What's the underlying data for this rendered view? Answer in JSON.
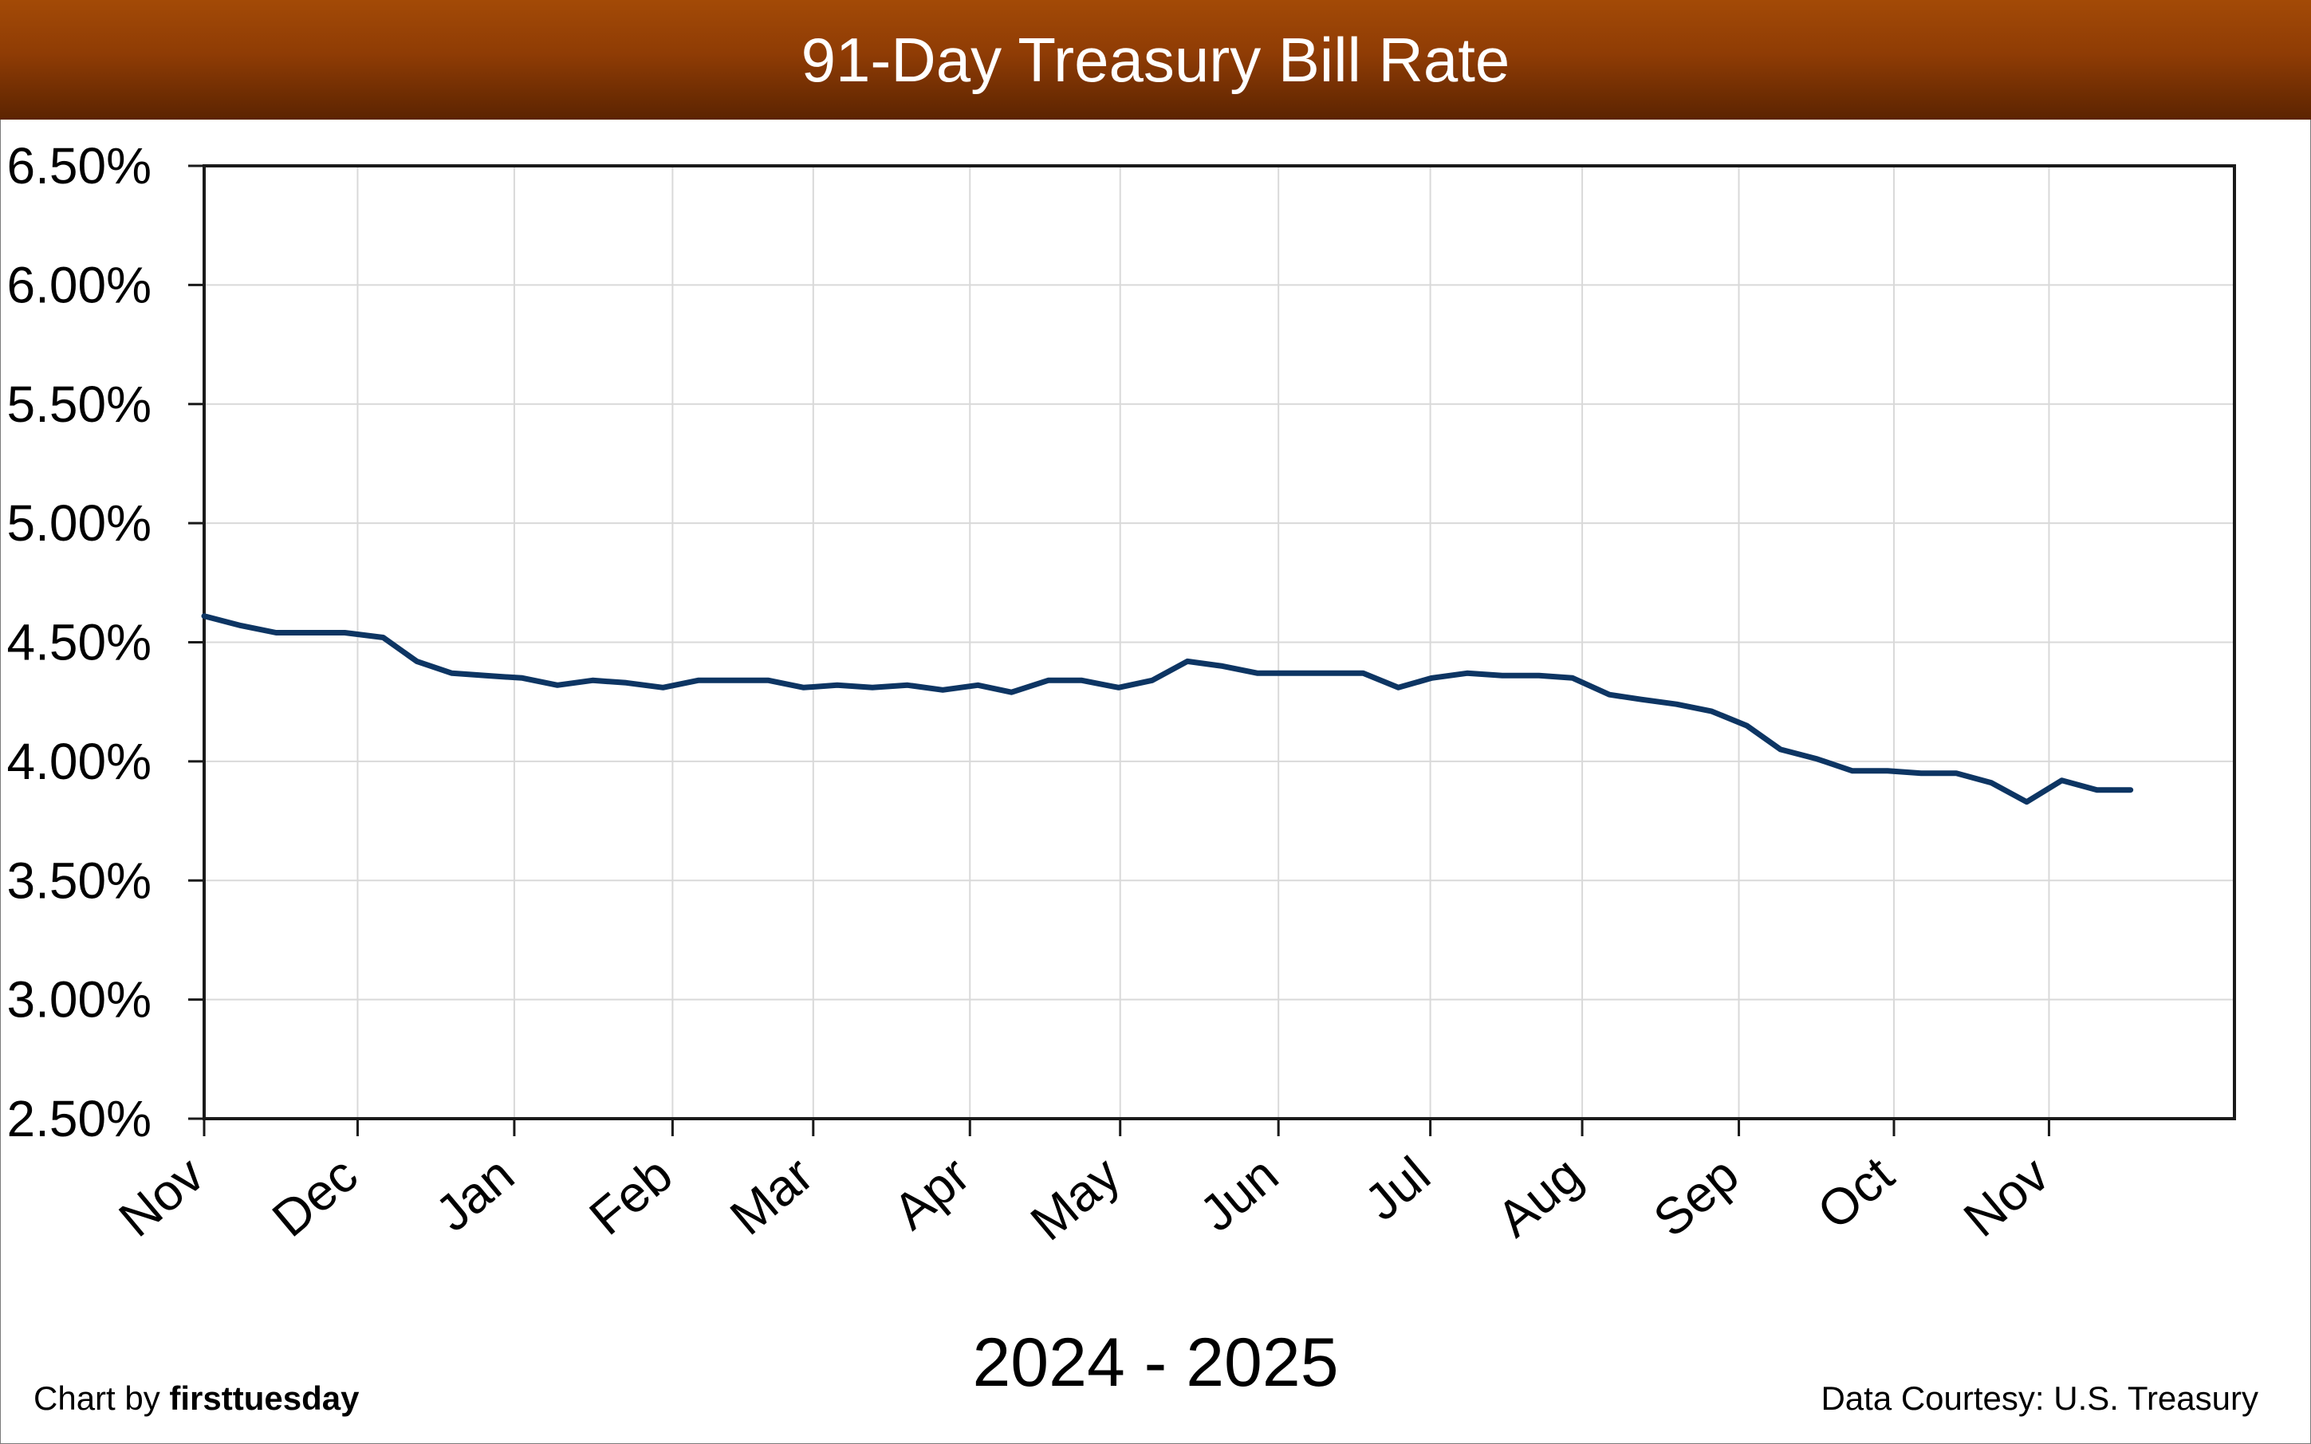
{
  "chart_data": {
    "type": "line",
    "title": "91-Day Treasury Bill Rate",
    "xlabel": "2024 - 2025",
    "ylabel": "",
    "ylim": [
      2.5,
      6.5
    ],
    "y_ticks": [
      "6.50%",
      "6.00%",
      "5.50%",
      "5.00%",
      "4.50%",
      "4.00%",
      "3.50%",
      "3.00%",
      "2.50%"
    ],
    "y_tick_values": [
      6.5,
      6.0,
      5.5,
      5.0,
      4.5,
      4.0,
      3.5,
      3.0,
      2.5
    ],
    "x_range": [
      0,
      12.7
    ],
    "month_labels": [
      "Nov",
      "Dec",
      "Jan",
      "Feb",
      "Mar",
      "Apr",
      "May",
      "Jun",
      "Jul",
      "Aug",
      "Sep",
      "Oct",
      "Nov"
    ],
    "month_positions": [
      0,
      0.96,
      1.94,
      2.93,
      3.81,
      4.79,
      5.73,
      6.72,
      7.67,
      8.62,
      9.6,
      10.57,
      11.54
    ],
    "grid": true,
    "legend": "none",
    "line_color": "#0d3563",
    "series": [
      {
        "x": [
          0,
          0.23,
          0.45,
          0.66,
          0.88,
          1.12,
          1.33,
          1.55,
          1.76,
          1.99,
          2.21,
          2.43,
          2.64,
          2.87,
          3.09,
          3.31,
          3.53,
          3.75,
          3.96,
          4.18,
          4.4,
          4.62,
          4.84,
          5.05,
          5.28,
          5.49,
          5.72,
          5.93,
          6.15,
          6.37,
          6.59,
          6.8,
          7.03,
          7.25,
          7.47,
          7.68,
          7.9,
          8.12,
          8.35,
          8.56,
          8.79,
          8.99,
          9.21,
          9.43,
          9.65,
          9.86,
          10.09,
          10.31,
          10.53,
          10.74,
          10.96,
          11.18,
          11.4,
          11.62,
          11.84,
          12.05
        ],
        "values": [
          4.61,
          4.57,
          4.54,
          4.54,
          4.54,
          4.52,
          4.42,
          4.37,
          4.36,
          4.35,
          4.32,
          4.34,
          4.33,
          4.31,
          4.34,
          4.34,
          4.34,
          4.31,
          4.32,
          4.31,
          4.32,
          4.3,
          4.32,
          4.29,
          4.34,
          4.34,
          4.31,
          4.34,
          4.42,
          4.4,
          4.37,
          4.37,
          4.37,
          4.37,
          4.31,
          4.35,
          4.37,
          4.36,
          4.36,
          4.35,
          4.28,
          4.26,
          4.24,
          4.21,
          4.15,
          4.05,
          4.01,
          3.96,
          3.96,
          3.95,
          3.95,
          3.91,
          3.83,
          3.92,
          3.88,
          3.88
        ]
      }
    ]
  },
  "footer": {
    "credit_prefix": "Chart by ",
    "credit_brand": "firsttuesday",
    "source": "Data Courtesy: U.S. Treasury"
  }
}
